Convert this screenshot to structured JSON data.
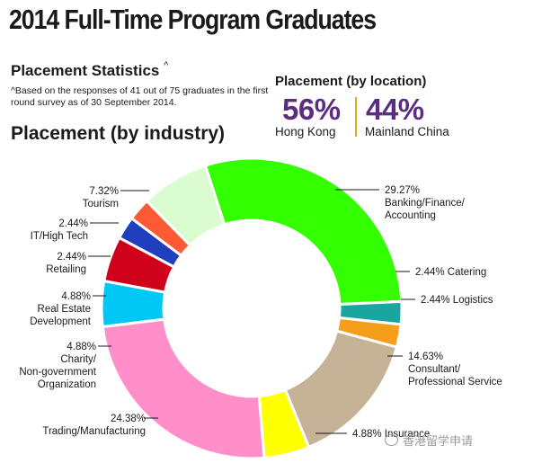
{
  "title": "2014 Full-Time Program Graduates",
  "placement_stats": {
    "heading": "Placement Statistics",
    "mark": "^",
    "note": "^Based on the responses of 41 out of 75 graduates in the first round survey as of 30 September 2014."
  },
  "placement_location": {
    "heading": "Placement (by location)",
    "hong_kong": {
      "value": "56%",
      "label": "Hong Kong"
    },
    "mainland_china": {
      "value": "44%",
      "label": "Mainland China"
    },
    "divider_color": "#e4a81c",
    "value_color": "#5a2d82"
  },
  "industry_heading": "Placement (by industry)",
  "chart_data": {
    "type": "pie",
    "style": "donut",
    "start_angle_deg": -18,
    "direction": "clockwise",
    "slices": [
      {
        "label": "Banking/Finance/Accounting",
        "label_lines": [
          "29.27%",
          "Banking/Finance/",
          "Accounting"
        ],
        "value": 29.27,
        "color": "#33ff00"
      },
      {
        "label": "Catering",
        "label_lines": [
          "2.44% Catering"
        ],
        "value": 2.44,
        "color": "#1aa6a0"
      },
      {
        "label": "Logistics",
        "label_lines": [
          "2.44% Logistics"
        ],
        "value": 2.44,
        "color": "#f59e1c"
      },
      {
        "label": "Consultant/Professional Service",
        "label_lines": [
          "14.63%",
          "Consultant/",
          "Professional Service"
        ],
        "value": 14.63,
        "color": "#c6b296"
      },
      {
        "label": "Insurance",
        "label_lines": [
          "4.88% Insurance"
        ],
        "value": 4.88,
        "color": "#ffff00"
      },
      {
        "label": "Trading/Manufacturing",
        "label_lines": [
          "24.38%",
          "Trading/Manufacturing"
        ],
        "value": 24.38,
        "color": "#ff8ec9"
      },
      {
        "label": "Charity/Non-government Organization",
        "label_lines": [
          "4.88%",
          "Charity/",
          "Non-government",
          "Organization"
        ],
        "value": 4.88,
        "color": "#00c8f5"
      },
      {
        "label": "Real Estate Development",
        "label_lines": [
          "4.88%",
          "Real Estate",
          "Development"
        ],
        "value": 4.88,
        "color": "#d0021b"
      },
      {
        "label": "Retailing",
        "label_lines": [
          "2.44%",
          "Retailing"
        ],
        "value": 2.44,
        "color": "#1f3fbf"
      },
      {
        "label": "IT/High Tech",
        "label_lines": [
          "2.44%",
          "IT/High Tech"
        ],
        "value": 2.44,
        "color": "#ff5a36"
      },
      {
        "label": "Tourism",
        "label_lines": [
          "7.32%",
          "Tourism"
        ],
        "value": 7.32,
        "color": "#d9fcd0"
      }
    ]
  },
  "watermark": "香港留学申请"
}
